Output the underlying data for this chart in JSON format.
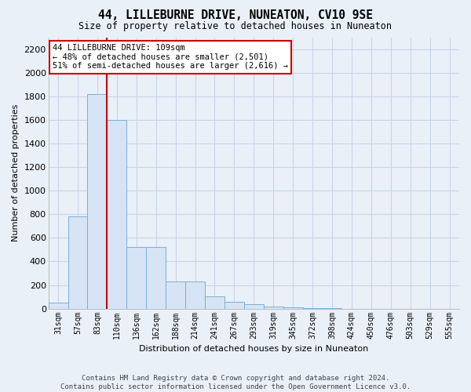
{
  "title": "44, LILLEBURNE DRIVE, NUNEATON, CV10 9SE",
  "subtitle": "Size of property relative to detached houses in Nuneaton",
  "xlabel": "Distribution of detached houses by size in Nuneaton",
  "ylabel": "Number of detached properties",
  "bin_labels": [
    "31sqm",
    "57sqm",
    "83sqm",
    "110sqm",
    "136sqm",
    "162sqm",
    "188sqm",
    "214sqm",
    "241sqm",
    "267sqm",
    "293sqm",
    "319sqm",
    "345sqm",
    "372sqm",
    "398sqm",
    "424sqm",
    "450sqm",
    "476sqm",
    "503sqm",
    "529sqm",
    "555sqm"
  ],
  "bar_values": [
    50,
    780,
    1820,
    1600,
    520,
    520,
    230,
    230,
    105,
    55,
    35,
    20,
    10,
    5,
    3,
    0,
    0,
    0,
    0,
    0,
    0
  ],
  "bar_color": "#d6e4f5",
  "bar_edge_color": "#7bafd4",
  "grid_color": "#c8d4e8",
  "background_color": "#eaf0f8",
  "red_line_bin": 3,
  "annotation_text": "44 LILLEBURNE DRIVE: 109sqm\n← 48% of detached houses are smaller (2,501)\n51% of semi-detached houses are larger (2,616) →",
  "annotation_box_facecolor": "#ffffff",
  "annotation_box_edgecolor": "#cc0000",
  "ylim": [
    0,
    2300
  ],
  "yticks": [
    0,
    200,
    400,
    600,
    800,
    1000,
    1200,
    1400,
    1600,
    1800,
    2000,
    2200
  ],
  "footer": "Contains HM Land Registry data © Crown copyright and database right 2024.\nContains public sector information licensed under the Open Government Licence v3.0."
}
